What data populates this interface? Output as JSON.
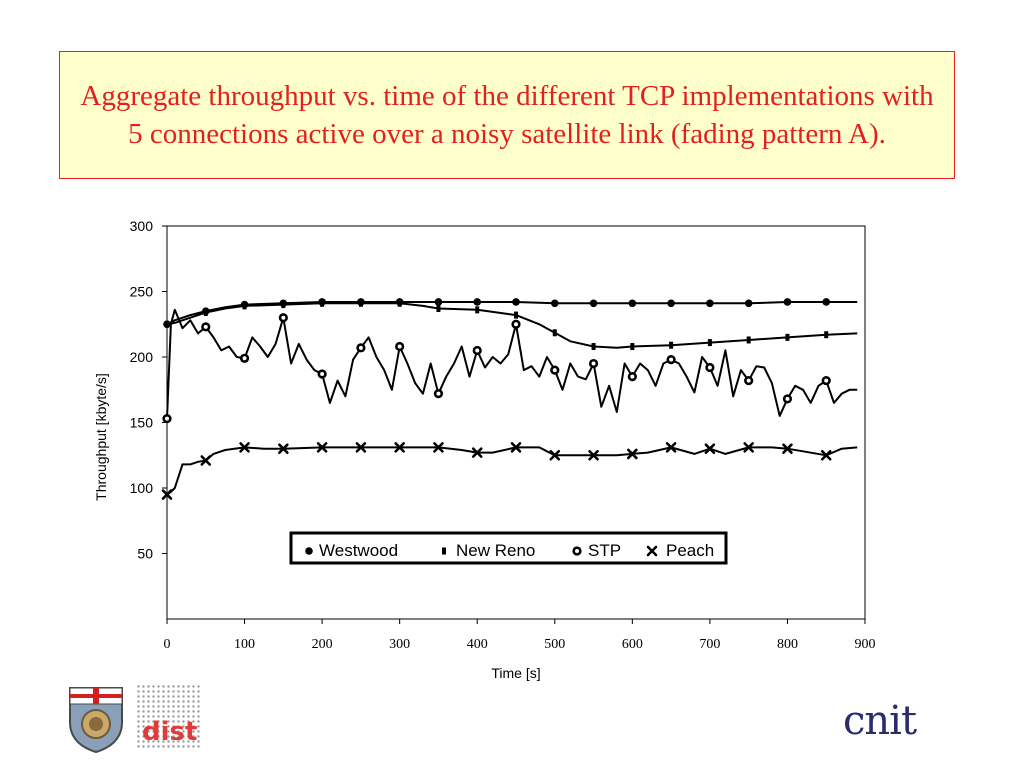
{
  "title": "Aggregate throughput vs. time of the different TCP implementations with 5 connections active over a noisy satellite link (fading pattern A).",
  "logos": {
    "cnit": "cnit",
    "dist": "dist"
  },
  "colors": {
    "title_text": "#e31f1f",
    "title_bg": "#ffffcc",
    "title_border": "#e31f1f",
    "series": "#000000"
  },
  "chart_data": {
    "type": "line",
    "xlabel": "Time [s]",
    "ylabel": "Throughput [kbyte/s]",
    "xlim": [
      0,
      900
    ],
    "ylim": [
      0,
      300
    ],
    "x_ticks": [
      "0",
      "100",
      "200",
      "300",
      "400",
      "500",
      "600",
      "700",
      "800",
      "900"
    ],
    "y_ticks": [
      "50",
      "100",
      "150",
      "200",
      "250",
      "300"
    ],
    "grid": false,
    "legend_position": "inside-bottom-center",
    "series": [
      {
        "name": "Westwood",
        "marker": "dot",
        "x": [
          0,
          10,
          20,
          30,
          50,
          75,
          100,
          150,
          200,
          250,
          300,
          350,
          400,
          450,
          500,
          550,
          600,
          650,
          700,
          750,
          800,
          850,
          890
        ],
        "y": [
          225,
          228,
          230,
          232,
          235,
          238,
          240,
          241,
          242,
          242,
          242,
          242,
          242,
          242,
          241,
          241,
          241,
          241,
          241,
          241,
          242,
          242,
          242
        ]
      },
      {
        "name": "New Reno",
        "marker": "square",
        "x": [
          0,
          10,
          20,
          30,
          50,
          75,
          100,
          150,
          200,
          250,
          300,
          330,
          350,
          400,
          450,
          480,
          520,
          550,
          580,
          600,
          650,
          700,
          750,
          800,
          850,
          890
        ],
        "y": [
          225,
          226,
          228,
          230,
          234,
          237,
          239,
          240,
          241,
          241,
          241,
          239,
          237,
          236,
          232,
          225,
          212,
          208,
          207,
          208,
          209,
          211,
          213,
          215,
          217,
          218
        ]
      },
      {
        "name": "STP",
        "marker": "ring",
        "x": [
          0,
          5,
          10,
          20,
          30,
          40,
          50,
          60,
          70,
          80,
          90,
          100,
          110,
          120,
          130,
          140,
          150,
          160,
          170,
          180,
          190,
          200,
          210,
          220,
          230,
          240,
          250,
          260,
          270,
          280,
          290,
          300,
          310,
          320,
          330,
          340,
          350,
          360,
          370,
          380,
          390,
          400,
          410,
          420,
          430,
          440,
          450,
          460,
          470,
          480,
          490,
          500,
          510,
          520,
          530,
          540,
          550,
          560,
          570,
          580,
          590,
          600,
          610,
          620,
          630,
          640,
          650,
          660,
          670,
          680,
          690,
          700,
          710,
          720,
          730,
          740,
          750,
          760,
          770,
          780,
          790,
          800,
          810,
          820,
          830,
          840,
          850,
          860,
          870,
          880,
          890
        ],
        "y": [
          153,
          225,
          236,
          222,
          228,
          218,
          223,
          215,
          205,
          208,
          200,
          199,
          215,
          208,
          200,
          210,
          230,
          195,
          210,
          198,
          190,
          187,
          165,
          182,
          170,
          198,
          207,
          215,
          200,
          190,
          175,
          208,
          195,
          180,
          172,
          195,
          172,
          185,
          195,
          208,
          185,
          205,
          192,
          200,
          195,
          202,
          225,
          190,
          193,
          185,
          200,
          190,
          175,
          195,
          185,
          183,
          195,
          162,
          178,
          158,
          195,
          185,
          195,
          190,
          178,
          195,
          198,
          195,
          185,
          173,
          200,
          192,
          178,
          205,
          170,
          190,
          182,
          193,
          192,
          180,
          155,
          168,
          178,
          175,
          165,
          178,
          182,
          165,
          172,
          175,
          175
        ]
      },
      {
        "name": "Peach",
        "marker": "x",
        "x": [
          0,
          5,
          10,
          20,
          30,
          40,
          50,
          60,
          75,
          100,
          125,
          150,
          200,
          250,
          300,
          350,
          380,
          400,
          420,
          450,
          480,
          500,
          550,
          580,
          600,
          620,
          650,
          680,
          700,
          720,
          750,
          780,
          800,
          820,
          850,
          870,
          890
        ],
        "y": [
          95,
          97,
          100,
          118,
          118,
          120,
          121,
          126,
          129,
          131,
          130,
          130,
          131,
          131,
          131,
          131,
          129,
          127,
          127,
          131,
          131,
          125,
          125,
          125,
          126,
          127,
          131,
          126,
          130,
          126,
          131,
          131,
          130,
          128,
          125,
          130,
          131
        ]
      }
    ]
  }
}
